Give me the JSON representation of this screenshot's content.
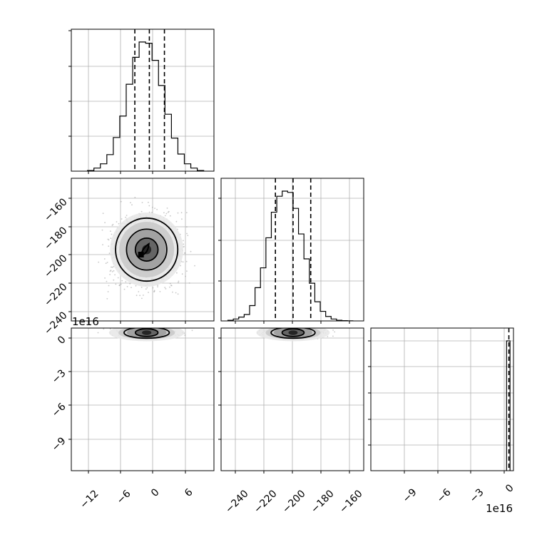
{
  "chart_data": {
    "type": "corner",
    "grid": true,
    "colors": {
      "hist": "#000000",
      "grid": "#b0b0b0",
      "frame": "#000000",
      "quantile": "#000000"
    },
    "x_ticks": {
      "p0": [
        "−12",
        "−6",
        "0",
        "6"
      ],
      "p1": [
        "−240",
        "−220",
        "−200",
        "−180",
        "−160"
      ],
      "p2": [
        "−9",
        "−6",
        "−3",
        "0"
      ]
    },
    "y_ticks": {
      "p1": [
        "−160",
        "−180",
        "−200",
        "−220",
        "−240"
      ],
      "p2": [
        "0",
        "−3",
        "−6",
        "−9"
      ]
    },
    "offset_labels": {
      "p2_y": "1e16",
      "p2_x": "1e16"
    },
    "panels": [
      {
        "id": "hist-p0",
        "type": "histogram",
        "xlim": [
          -15,
          11.5
        ],
        "edges": [
          -12,
          -10.8,
          -9.6,
          -8.4,
          -7.2,
          -6,
          -4.8,
          -3.6,
          -2.4,
          -1.2,
          0,
          1.2,
          2.4,
          3.6,
          4.8,
          6,
          7.2,
          8.4,
          9.6
        ],
        "counts": [
          1,
          5,
          12,
          27,
          55,
          90,
          142,
          186,
          211,
          209,
          181,
          140,
          93,
          54,
          28,
          12,
          5,
          1
        ],
        "quantiles": [
          -3.2,
          -0.5,
          2.3
        ]
      },
      {
        "id": "contour-p0-p1",
        "type": "contour2d",
        "xlim": [
          -15,
          11.5
        ],
        "ylim": [
          -247,
          -147
        ],
        "center": [
          -1.0,
          -197.0
        ],
        "spread": [
          3.4,
          13.0
        ],
        "levels": [
          1.7,
          1.1,
          0.62
        ]
      },
      {
        "id": "hist-p1",
        "type": "histogram",
        "xlim": [
          -250,
          -145
        ],
        "edges": [
          -245,
          -241,
          -237,
          -233,
          -229,
          -225,
          -221,
          -217,
          -213,
          -209,
          -205,
          -201,
          -197,
          -193,
          -189,
          -185,
          -181,
          -177,
          -173,
          -169,
          -165,
          -161,
          -157,
          -153
        ],
        "counts": [
          1,
          3,
          6,
          10,
          24,
          52,
          83,
          130,
          170,
          195,
          203,
          201,
          176,
          136,
          97,
          59,
          30,
          15,
          7,
          3,
          1,
          0.5,
          0.2
        ],
        "quantiles": [
          -210,
          -197,
          -184
        ]
      },
      {
        "id": "contour-p0-p2",
        "type": "contour2d",
        "xlim": [
          -15,
          11.5
        ],
        "ylim": [
          -1.2e+17,
          4000000000000000.0
        ],
        "center": [
          -1.0,
          0
        ],
        "spread": [
          3.5,
          1200000000000000.0
        ],
        "levels": [
          1.2,
          0.6
        ]
      },
      {
        "id": "contour-p1-p2",
        "type": "contour2d",
        "xlim": [
          -250,
          -145
        ],
        "ylim": [
          -1.2e+17,
          4000000000000000.0
        ],
        "center": [
          -197.0,
          0
        ],
        "spread": [
          13.5,
          1200000000000000.0
        ],
        "levels": [
          1.2,
          0.6
        ]
      },
      {
        "id": "hist-p2",
        "type": "histogram",
        "xlim": [
          -1.2e+17,
          4000000000000000.0
        ],
        "edges": [
          -2000000000000000.0,
          1000000000000000.0
        ],
        "counts": [
          5000
        ],
        "quantiles": [
          0
        ]
      }
    ]
  }
}
